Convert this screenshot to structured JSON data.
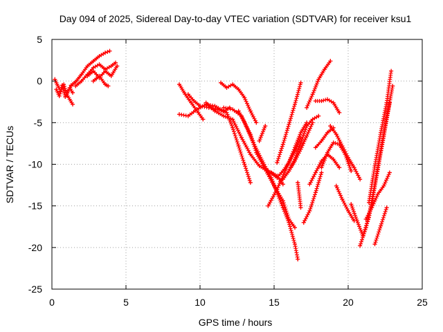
{
  "chart_data": {
    "type": "scatter",
    "title": "Day 094 of 2025, Sidereal Day-to-day VTEC variation (SDTVAR) for receiver ksu1",
    "xlabel": "GPS time / hours",
    "ylabel": "SDTVAR / TECUs",
    "xlim": [
      0,
      25
    ],
    "ylim": [
      -25,
      5
    ],
    "xticks": [
      "0",
      "5",
      "10",
      "15",
      "20",
      "25"
    ],
    "yticks": [
      "5",
      "0",
      "-5",
      "-10",
      "-15",
      "-20",
      "-25"
    ],
    "grid": true,
    "marker": "+",
    "color": "#ff0000",
    "series": [
      {
        "x": [
          0.2,
          0.4,
          0.6,
          0.8,
          1.0,
          1.2,
          1.4
        ],
        "y": [
          0.2,
          -0.6,
          -1.2,
          -0.4,
          -1.6,
          -0.8,
          -1.4
        ]
      },
      {
        "x": [
          0.3,
          0.5,
          0.7,
          0.9,
          1.1,
          1.3
        ],
        "y": [
          -1.0,
          -1.8,
          -0.5,
          -1.9,
          -1.2,
          -0.6
        ]
      },
      {
        "x": [
          1.0,
          1.4
        ],
        "y": [
          -1.6,
          -2.8
        ]
      },
      {
        "x": [
          1.3,
          1.6,
          2.0,
          2.4,
          2.8,
          3.2,
          3.6,
          3.9
        ],
        "y": [
          -0.5,
          -0.1,
          0.8,
          1.8,
          2.4,
          3.0,
          3.4,
          3.6
        ]
      },
      {
        "x": [
          1.6,
          2.0,
          2.4,
          2.8,
          3.2,
          3.6,
          4.0,
          4.3
        ],
        "y": [
          -0.6,
          0.0,
          0.8,
          1.6,
          2.0,
          1.4,
          1.8,
          2.2
        ]
      },
      {
        "x": [
          2.4,
          2.8,
          3.2,
          3.6,
          4.0,
          4.4
        ],
        "y": [
          0.6,
          1.2,
          0.4,
          1.2,
          0.6,
          1.8
        ]
      },
      {
        "x": [
          2.8,
          3.2,
          3.6,
          3.8
        ],
        "y": [
          0.0,
          0.6,
          -0.4,
          -0.6
        ]
      },
      {
        "x": [
          8.6,
          9.0,
          9.4,
          9.8,
          10.2
        ],
        "y": [
          -0.4,
          -1.6,
          -2.6,
          -3.6,
          -4.6
        ]
      },
      {
        "x": [
          8.6,
          9.2,
          9.8,
          10.4,
          11.0,
          11.6,
          12.0
        ],
        "y": [
          -4.0,
          -4.2,
          -3.4,
          -2.8,
          -3.0,
          -3.6,
          -3.2
        ]
      },
      {
        "x": [
          9.2,
          9.6,
          10.0,
          10.6,
          11.2,
          11.8,
          12.2,
          12.6,
          13.0,
          13.4
        ],
        "y": [
          -1.6,
          -2.4,
          -3.0,
          -3.2,
          -3.4,
          -3.8,
          -5.6,
          -7.8,
          -10.0,
          -12.2
        ]
      },
      {
        "x": [
          10.4,
          11.0,
          11.6,
          12.2,
          12.8,
          13.4,
          14.0,
          14.6,
          15.2,
          15.6
        ],
        "y": [
          -2.6,
          -3.6,
          -4.2,
          -4.6,
          -6.8,
          -8.8,
          -10.2,
          -10.8,
          -11.4,
          -12.4
        ]
      },
      {
        "x": [
          11.6,
          12.2,
          12.8,
          13.4,
          13.8,
          14.4,
          15.0,
          15.6,
          16.0,
          16.4
        ],
        "y": [
          -3.2,
          -3.4,
          -4.2,
          -6.4,
          -8.6,
          -10.6,
          -12.6,
          -14.4,
          -16.6,
          -17.6
        ]
      },
      {
        "x": [
          12.6,
          13.0,
          13.6,
          14.2,
          14.8,
          15.2,
          15.6,
          16.0,
          16.4,
          16.6
        ],
        "y": [
          -3.6,
          -5.0,
          -7.4,
          -9.6,
          -11.6,
          -13.4,
          -15.2,
          -17.0,
          -19.6,
          -21.4
        ]
      },
      {
        "x": [
          11.4,
          11.8,
          12.2,
          12.6,
          13.0,
          13.4,
          13.8
        ],
        "y": [
          -0.2,
          -0.8,
          -0.4,
          -1.0,
          -2.0,
          -3.6,
          -5.0
        ]
      },
      {
        "x": [
          14.0,
          14.4
        ],
        "y": [
          -7.2,
          -5.4
        ]
      },
      {
        "x": [
          14.8,
          15.2,
          15.6,
          16.0,
          16.4,
          16.8
        ],
        "y": [
          -11.0,
          -11.6,
          -10.8,
          -9.8,
          -8.4,
          -6.8
        ]
      },
      {
        "x": [
          14.6,
          15.2,
          15.8,
          16.4,
          16.8,
          17.2
        ],
        "y": [
          -15.0,
          -13.0,
          -10.6,
          -8.0,
          -6.2,
          -5.0
        ]
      },
      {
        "x": [
          15.2,
          15.6,
          16.0,
          16.4,
          16.8
        ],
        "y": [
          -9.8,
          -7.6,
          -5.2,
          -2.8,
          -0.2
        ]
      },
      {
        "x": [
          15.6,
          16.0,
          16.4,
          16.8,
          17.2,
          17.6
        ],
        "y": [
          -11.8,
          -10.8,
          -9.6,
          -8.2,
          -6.6,
          -5.0
        ]
      },
      {
        "x": [
          16.0,
          16.4,
          16.8,
          17.2,
          17.6,
          18.0
        ],
        "y": [
          -10.8,
          -9.4,
          -7.4,
          -5.4,
          -4.6,
          -4.2
        ]
      },
      {
        "x": [
          16.6,
          16.8
        ],
        "y": [
          -12.2,
          -15.2
        ]
      },
      {
        "x": [
          17.0,
          17.4,
          17.8,
          18.2
        ],
        "y": [
          -17.0,
          -15.6,
          -13.4,
          -11.0
        ]
      },
      {
        "x": [
          17.4,
          17.8,
          18.2,
          18.6,
          19.0,
          19.4
        ],
        "y": [
          -12.4,
          -11.0,
          -9.6,
          -8.8,
          -9.4,
          -10.4
        ]
      },
      {
        "x": [
          17.2,
          17.6,
          18.0,
          18.4,
          18.8
        ],
        "y": [
          -3.2,
          -1.6,
          0.2,
          1.4,
          2.4
        ]
      },
      {
        "x": [
          17.8,
          18.2,
          18.6,
          19.0,
          19.4
        ],
        "y": [
          -2.4,
          -2.4,
          -2.2,
          -2.6,
          -3.8
        ]
      },
      {
        "x": [
          17.8,
          18.2,
          18.6,
          19.0
        ],
        "y": [
          -8.0,
          -7.2,
          -6.2,
          -5.6
        ]
      },
      {
        "x": [
          18.2,
          18.6,
          19.0,
          19.4,
          19.8,
          20.2
        ],
        "y": [
          -10.4,
          -8.6,
          -7.4,
          -7.6,
          -8.8,
          -10.8
        ]
      },
      {
        "x": [
          18.8,
          19.2,
          19.6,
          20.0,
          20.4,
          20.8
        ],
        "y": [
          -5.4,
          -6.4,
          -7.8,
          -9.2,
          -10.4,
          -11.8
        ]
      },
      {
        "x": [
          19.2,
          19.6,
          20.0,
          20.4
        ],
        "y": [
          -12.6,
          -14.2,
          -15.6,
          -16.8
        ]
      },
      {
        "x": [
          20.2,
          20.6,
          21.0
        ],
        "y": [
          -14.8,
          -16.8,
          -18.6
        ]
      },
      {
        "x": [
          20.8,
          21.2,
          21.6,
          22.0,
          22.4,
          22.8
        ],
        "y": [
          -19.8,
          -17.6,
          -14.6,
          -10.6,
          -6.6,
          -2.6
        ]
      },
      {
        "x": [
          21.0,
          21.4,
          21.8,
          22.2,
          22.6,
          23.0
        ],
        "y": [
          -18.6,
          -16.4,
          -12.4,
          -8.4,
          -4.4,
          -0.6
        ]
      },
      {
        "x": [
          21.4,
          21.8,
          22.2,
          22.6,
          22.9
        ],
        "y": [
          -14.6,
          -10.2,
          -6.2,
          -2.6,
          1.2
        ]
      },
      {
        "x": [
          21.8,
          22.2,
          22.6
        ],
        "y": [
          -19.6,
          -17.4,
          -15.2
        ]
      },
      {
        "x": [
          21.2,
          21.6,
          22.0,
          22.4,
          22.8
        ],
        "y": [
          -16.6,
          -15.2,
          -13.6,
          -12.6,
          -11.0
        ]
      }
    ]
  }
}
